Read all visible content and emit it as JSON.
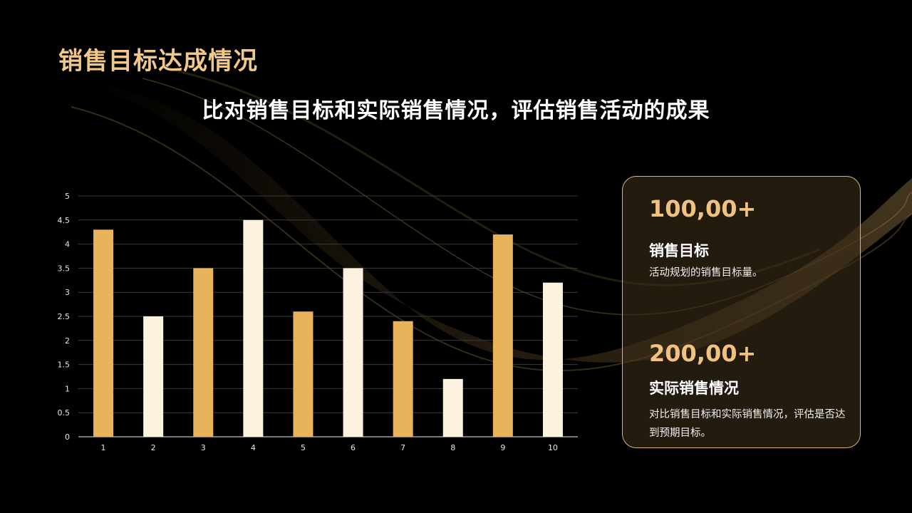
{
  "title": "销售目标达成情况",
  "subtitle": "比对销售目标和实际销售情况，评估销售活动的成果",
  "colors": {
    "accent": "#E8B35A",
    "light": "#FDF1E0",
    "background": "#000000",
    "title": "#F0C88A"
  },
  "chart_data": {
    "type": "bar",
    "categories": [
      "1",
      "2",
      "3",
      "4",
      "5",
      "6",
      "7",
      "8",
      "9",
      "10"
    ],
    "values": [
      4.3,
      2.5,
      3.5,
      4.5,
      2.6,
      3.5,
      2.4,
      1.2,
      4.2,
      3.2
    ],
    "bar_colors": [
      "#E8B35A",
      "#FDF1E0",
      "#E8B35A",
      "#FDF1E0",
      "#E8B35A",
      "#FDF1E0",
      "#E8B35A",
      "#FDF1E0",
      "#E8B35A",
      "#FDF1E0"
    ],
    "ylim": [
      0,
      5
    ],
    "yticks": [
      "0",
      "0.5",
      "1",
      "1.5",
      "2",
      "2.5",
      "3",
      "3.5",
      "4",
      "4.5",
      "5"
    ],
    "grid": true,
    "title": "",
    "xlabel": "",
    "ylabel": ""
  },
  "stats": [
    {
      "value": "100,00+",
      "label": "销售目标",
      "desc": "活动规划的销售目标量。"
    },
    {
      "value": "200,00+",
      "label": "实际销售情况",
      "desc": "对比销售目标和实际销售情况，评估是否达到预期目标。"
    }
  ]
}
